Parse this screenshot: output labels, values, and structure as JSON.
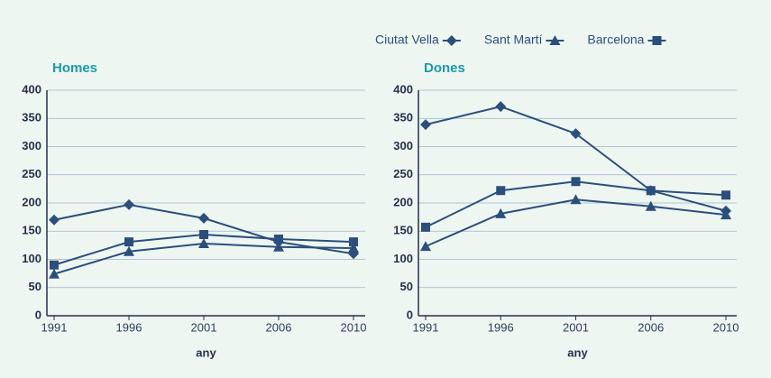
{
  "chart_data": [
    {
      "type": "line",
      "title": "Homes",
      "xlabel": "any",
      "categories": [
        "1991",
        "1996",
        "2001",
        "2006",
        "2010"
      ],
      "ylim": [
        0,
        400
      ],
      "yticks": [
        0,
        50,
        100,
        150,
        200,
        250,
        300,
        350,
        400
      ],
      "grid": true,
      "series": [
        {
          "name": "Ciutat Vella",
          "color": "#2b4f7d",
          "marker": "diamond",
          "values": [
            170,
            197,
            173,
            131,
            110
          ]
        },
        {
          "name": "Sant Martí",
          "color": "#2b4f7d",
          "marker": "triangle",
          "values": [
            74,
            114,
            128,
            122,
            120
          ]
        },
        {
          "name": "Barcelona",
          "color": "#2b4f7d",
          "marker": "square",
          "values": [
            90,
            131,
            144,
            136,
            131
          ]
        }
      ]
    },
    {
      "type": "line",
      "title": "Dones",
      "xlabel": "any",
      "categories": [
        "1991",
        "1996",
        "2001",
        "2006",
        "2010"
      ],
      "ylim": [
        0,
        400
      ],
      "yticks": [
        0,
        50,
        100,
        150,
        200,
        250,
        300,
        350,
        400
      ],
      "grid": true,
      "series": [
        {
          "color": "#2b4f7d",
          "marker": "diamond",
          "values": [
            339,
            371,
            323,
            222,
            186
          ]
        },
        {
          "color": "#2b4f7d",
          "marker": "triangle",
          "values": [
            123,
            181,
            206,
            194,
            179
          ]
        },
        {
          "color": "#2b4f7d",
          "marker": "square",
          "values": [
            157,
            222,
            238,
            222,
            214
          ]
        }
      ]
    }
  ]
}
